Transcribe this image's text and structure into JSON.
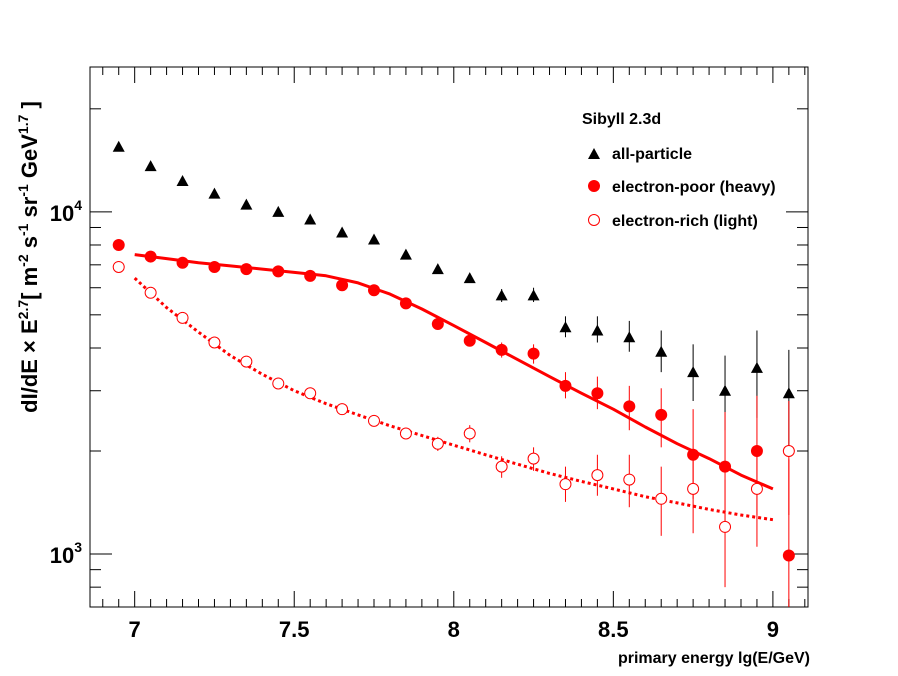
{
  "chart_data": {
    "type": "scatter",
    "title": "",
    "xlabel": "primary energy lg(E/GeV)",
    "ylabel": {
      "base": "dI/dE × E",
      "exp_energy": "2.7",
      "bracket_open": "[ m",
      "exp_m": "-2",
      "s": " s",
      "exp_s": "-1",
      "sr": " sr",
      "exp_sr": "-1",
      "gev": " GeV",
      "exp_gev": "1.7",
      "bracket_close": " ]"
    },
    "xlim": [
      6.86,
      9.11
    ],
    "ylim": [
      700,
      26500
    ],
    "yscale": "log",
    "xticks": [
      7,
      7.5,
      8,
      8.5,
      9
    ],
    "xtick_labels": [
      "7",
      "7.5",
      "8",
      "8.5",
      "9"
    ],
    "yticks_major": [
      {
        "base": "10",
        "exp": "4",
        "value": 10000
      },
      {
        "base": "10",
        "exp": "3",
        "value": 1000
      }
    ],
    "legend": {
      "position": "top-right",
      "header": "Sibyll 2.3d",
      "entries": [
        {
          "label": "all-particle",
          "marker": "triangle-filled",
          "color": "#000000"
        },
        {
          "label": "electron-poor (heavy)",
          "marker": "circle-filled",
          "color": "#ff0000"
        },
        {
          "label": "electron-rich (light)",
          "marker": "circle-open",
          "color": "#ff0000"
        }
      ]
    },
    "series": [
      {
        "name": "all-particle",
        "marker": "triangle-filled",
        "color": "#000000",
        "x": [
          6.95,
          7.05,
          7.15,
          7.25,
          7.35,
          7.45,
          7.55,
          7.65,
          7.75,
          7.85,
          7.95,
          8.05,
          8.15,
          8.25,
          8.35,
          8.45,
          8.55,
          8.65,
          8.75,
          8.85,
          8.95,
          9.05
        ],
        "y": [
          15500,
          13600,
          12300,
          11300,
          10500,
          10000,
          9500,
          8700,
          8300,
          7500,
          6800,
          6400,
          5700,
          5700,
          4600,
          4500,
          4300,
          3900,
          3400,
          3000,
          3500,
          2950
        ],
        "err_low": [
          0,
          0,
          0,
          0,
          0,
          0,
          0,
          0,
          0,
          0,
          0,
          0,
          250,
          250,
          300,
          350,
          400,
          500,
          600,
          700,
          1000,
          1000
        ],
        "err_high": [
          0,
          0,
          0,
          0,
          0,
          0,
          0,
          0,
          0,
          0,
          0,
          0,
          250,
          300,
          350,
          450,
          500,
          600,
          700,
          800,
          1000,
          1000
        ]
      },
      {
        "name": "electron-poor (heavy)",
        "marker": "circle-filled",
        "color": "#ff0000",
        "x": [
          6.95,
          7.05,
          7.15,
          7.25,
          7.35,
          7.45,
          7.55,
          7.65,
          7.75,
          7.85,
          7.95,
          8.05,
          8.15,
          8.25,
          8.35,
          8.45,
          8.55,
          8.65,
          8.75,
          8.85,
          8.95,
          9.05
        ],
        "y": [
          8000,
          7400,
          7100,
          6900,
          6800,
          6700,
          6500,
          6100,
          5900,
          5400,
          4700,
          4200,
          3950,
          3850,
          3100,
          2950,
          2700,
          2550,
          1950,
          1800,
          2000,
          990
        ],
        "err_low": [
          0,
          0,
          0,
          0,
          0,
          0,
          0,
          0,
          0,
          0,
          0,
          150,
          200,
          250,
          250,
          300,
          400,
          500,
          500,
          600,
          700,
          700
        ],
        "err_high": [
          0,
          0,
          0,
          0,
          0,
          0,
          0,
          0,
          0,
          0,
          0,
          150,
          200,
          250,
          300,
          350,
          400,
          500,
          700,
          800,
          900,
          900
        ]
      },
      {
        "name": "electron-rich (light)",
        "marker": "circle-open",
        "color": "#ff0000",
        "x": [
          6.95,
          7.05,
          7.15,
          7.25,
          7.35,
          7.45,
          7.55,
          7.65,
          7.75,
          7.85,
          7.95,
          8.05,
          8.15,
          8.25,
          8.35,
          8.45,
          8.55,
          8.65,
          8.75,
          8.85,
          8.95,
          9.05
        ],
        "y": [
          6900,
          5800,
          4900,
          4150,
          3650,
          3150,
          2950,
          2650,
          2450,
          2250,
          2100,
          2250,
          1800,
          1900,
          1600,
          1700,
          1650,
          1450,
          1550,
          1200,
          1550,
          2000
        ],
        "err_low": [
          0,
          0,
          0,
          0,
          0,
          0,
          0,
          0,
          0,
          0,
          100,
          130,
          130,
          150,
          180,
          220,
          280,
          320,
          400,
          400,
          500,
          700
        ],
        "err_high": [
          0,
          0,
          0,
          0,
          0,
          0,
          0,
          0,
          0,
          0,
          100,
          130,
          130,
          150,
          200,
          250,
          300,
          350,
          400,
          450,
          500,
          800
        ]
      }
    ],
    "fits": [
      {
        "name": "electron-poor fit",
        "style": "solid",
        "color": "#ff0000",
        "x": [
          7.0,
          7.1,
          7.2,
          7.3,
          7.4,
          7.5,
          7.6,
          7.7,
          7.8,
          7.9,
          8.0,
          8.1,
          8.2,
          8.3,
          8.4,
          8.5,
          8.6,
          8.7,
          8.8,
          8.9,
          9.0
        ],
        "y": [
          7500,
          7300,
          7100,
          6950,
          6800,
          6650,
          6500,
          6200,
          5750,
          5200,
          4650,
          4150,
          3700,
          3300,
          2950,
          2650,
          2350,
          2100,
          1900,
          1700,
          1550
        ]
      },
      {
        "name": "electron-rich fit",
        "style": "dotted",
        "color": "#ff0000",
        "x": [
          7.0,
          7.1,
          7.2,
          7.3,
          7.4,
          7.5,
          7.6,
          7.7,
          7.8,
          7.9,
          8.0,
          8.1,
          8.2,
          8.3,
          8.4,
          8.5,
          8.6,
          8.7,
          8.8,
          8.9,
          9.0
        ],
        "y": [
          6400,
          5250,
          4450,
          3800,
          3350,
          3000,
          2750,
          2550,
          2370,
          2220,
          2080,
          1950,
          1830,
          1720,
          1630,
          1550,
          1470,
          1410,
          1350,
          1300,
          1260
        ]
      }
    ]
  }
}
